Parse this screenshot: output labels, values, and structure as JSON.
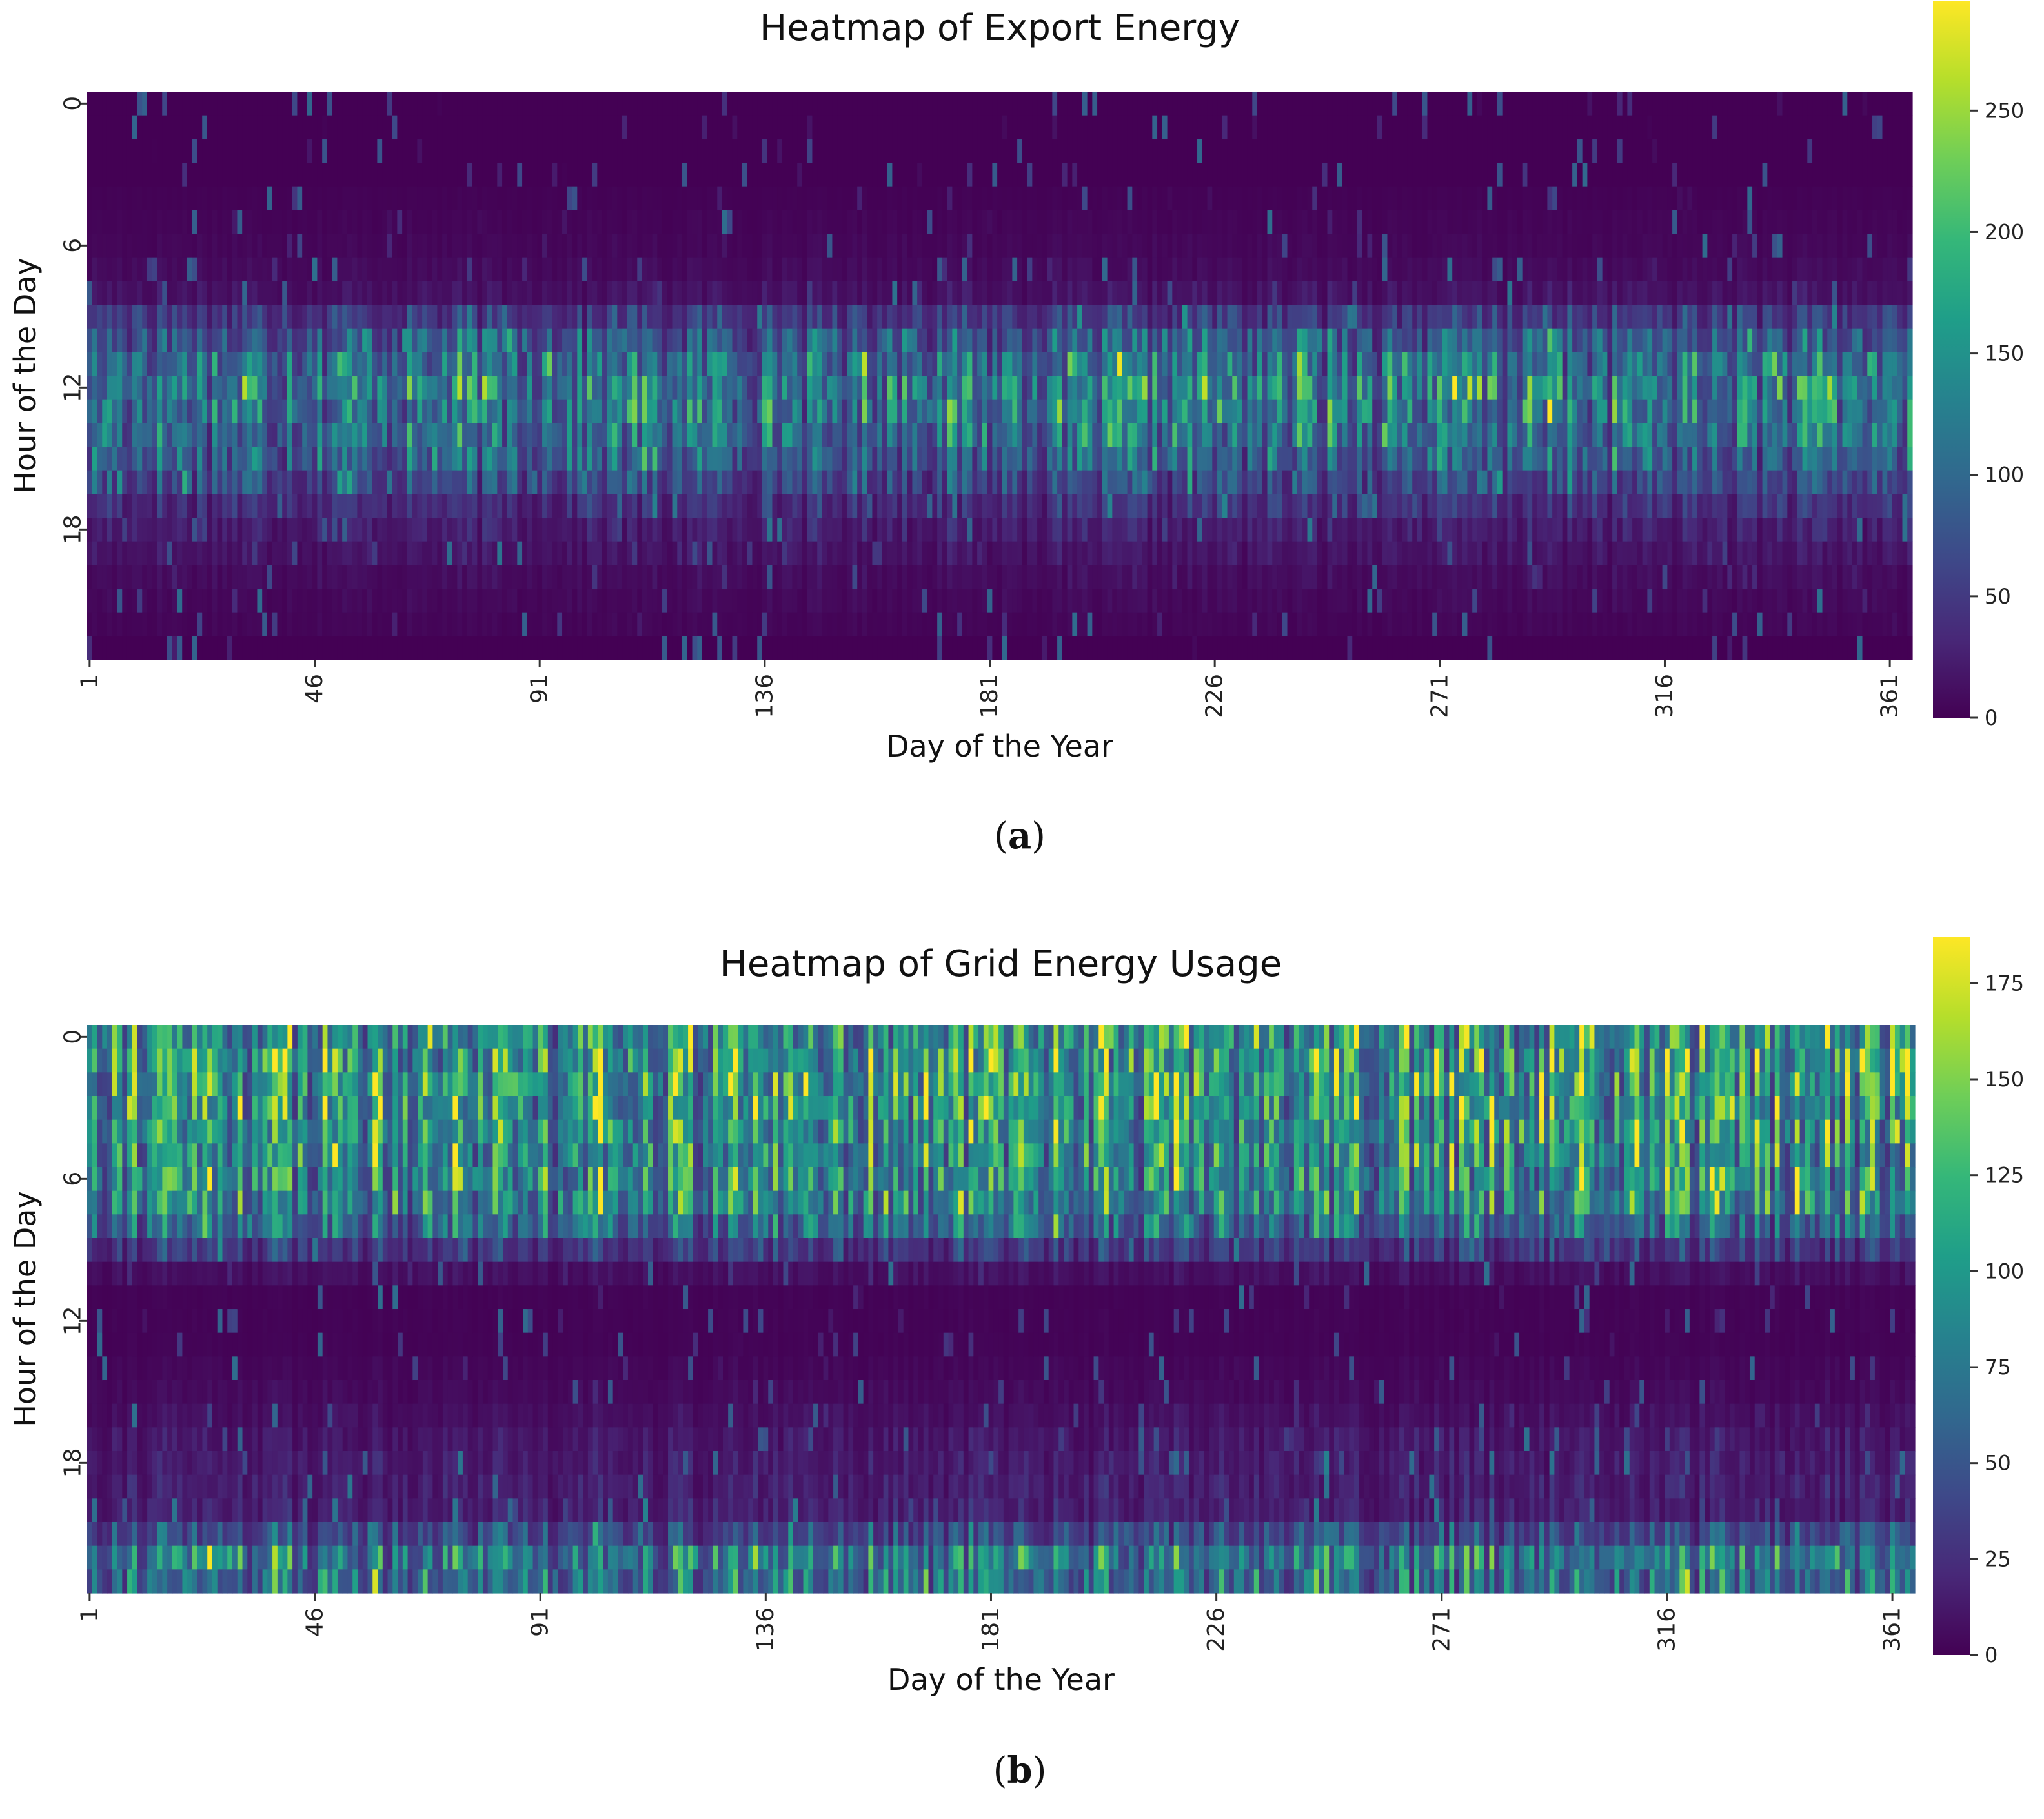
{
  "chart_data": [
    {
      "type": "heatmap",
      "title": "Heatmap of Export Energy",
      "xlabel": "Day of the Year",
      "ylabel": "Hour of the Day",
      "x_range": [
        1,
        365
      ],
      "y_range": [
        0,
        23
      ],
      "x_ticks": [
        "1",
        "46",
        "91",
        "136",
        "181",
        "226",
        "271",
        "316",
        "361"
      ],
      "y_ticks": [
        "0",
        "6",
        "12",
        "18"
      ],
      "colormap": "viridis",
      "colorbar": {
        "min": 0,
        "max": 295,
        "ticks": [
          "0",
          "50",
          "100",
          "150",
          "200",
          "250"
        ]
      },
      "hour_profile": [
        0,
        0,
        0,
        0,
        2,
        4,
        6,
        10,
        18,
        60,
        100,
        130,
        150,
        145,
        130,
        110,
        80,
        50,
        30,
        20,
        12,
        8,
        5,
        0
      ],
      "panel_label": "a"
    },
    {
      "type": "heatmap",
      "title": "Heatmap of Grid Energy Usage",
      "xlabel": "Day of the Year",
      "ylabel": "Hour of the Day",
      "x_range": [
        1,
        365
      ],
      "y_range": [
        0,
        23
      ],
      "x_ticks": [
        "1",
        "46",
        "91",
        "136",
        "181",
        "226",
        "271",
        "316",
        "361"
      ],
      "y_ticks": [
        "0",
        "6",
        "12",
        "18"
      ],
      "colormap": "viridis",
      "colorbar": {
        "min": 0,
        "max": 187,
        "ticks": [
          "0",
          "25",
          "50",
          "75",
          "100",
          "125",
          "150",
          "175"
        ]
      },
      "hour_profile": [
        120,
        125,
        125,
        120,
        118,
        115,
        112,
        105,
        80,
        40,
        10,
        2,
        2,
        2,
        4,
        6,
        10,
        15,
        18,
        20,
        22,
        55,
        95,
        85
      ],
      "panel_label": "b"
    }
  ],
  "colors": {
    "viridis": [
      "#440154",
      "#482878",
      "#3e4989",
      "#31688e",
      "#26828e",
      "#1f9e89",
      "#35b779",
      "#6ece58",
      "#b5de2b",
      "#fde725"
    ]
  }
}
